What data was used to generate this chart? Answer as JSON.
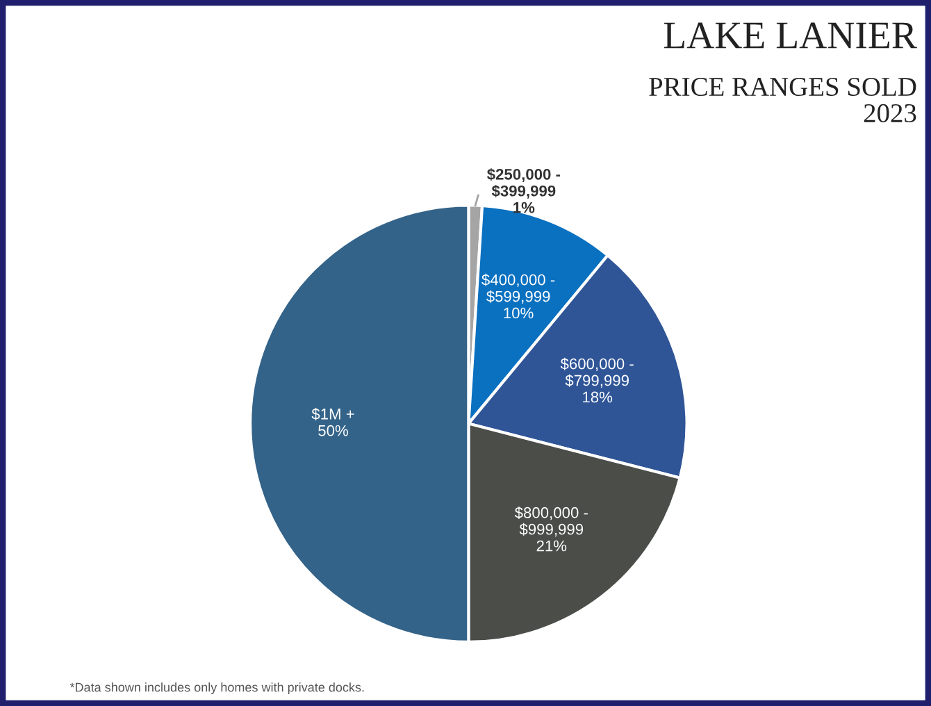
{
  "chart_data": {
    "type": "pie",
    "title": "LAKE LANIER",
    "subtitle": "PRICE RANGES SOLD\n2023",
    "categories": [
      "$250,000 -\n$399,999",
      "$400,000 -\n$599,999",
      "$600,000 -\n$799,999",
      "$800,000 -\n$999,999",
      "$1M +"
    ],
    "values": [
      1,
      10,
      18,
      21,
      50
    ],
    "colors": [
      "#a5a5a5",
      "#0a70c0",
      "#2f5597",
      "#4b4d48",
      "#346389"
    ],
    "value_labels": [
      "1%",
      "10%",
      "18%",
      "21%",
      "50%"
    ],
    "legend": false,
    "annotations": [
      "*Data shown includes only homes with private docks."
    ]
  }
}
